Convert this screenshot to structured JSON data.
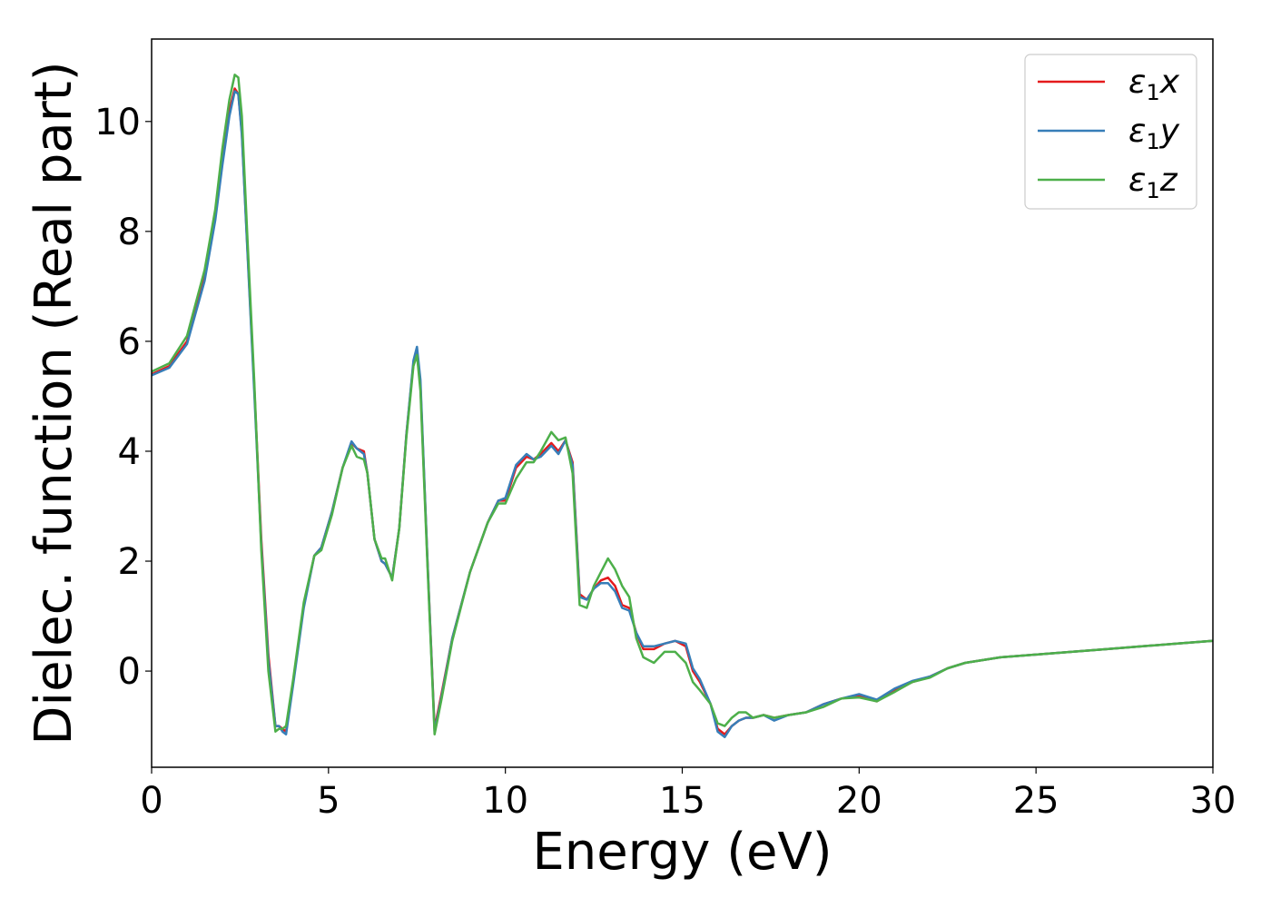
{
  "chart_data": {
    "type": "line",
    "title": "",
    "xlabel": "Energy (eV)",
    "ylabel": "Dielec. function (Real part)",
    "xlim": [
      0,
      30
    ],
    "ylim": [
      -1.75,
      11.5
    ],
    "xticks": [
      0,
      5,
      10,
      15,
      20,
      25,
      30
    ],
    "yticks": [
      0,
      2,
      4,
      6,
      8,
      10
    ],
    "grid": false,
    "legend_position": "top-right",
    "series": [
      {
        "name": "ε₁x",
        "legend_main": "ε",
        "legend_sub": "1",
        "legend_suffix": "x",
        "color": "#e41a1c",
        "x": [
          0,
          0.5,
          1.0,
          1.5,
          1.8,
          2.0,
          2.2,
          2.35,
          2.45,
          2.55,
          2.7,
          2.9,
          3.1,
          3.3,
          3.5,
          3.6,
          3.7,
          3.8,
          4.0,
          4.3,
          4.6,
          4.8,
          5.1,
          5.4,
          5.65,
          5.8,
          6.0,
          6.1,
          6.3,
          6.5,
          6.6,
          6.8,
          7.0,
          7.2,
          7.4,
          7.5,
          7.6,
          7.8,
          8.0,
          8.2,
          8.5,
          9.0,
          9.5,
          9.8,
          10.0,
          10.3,
          10.6,
          10.8,
          11.0,
          11.3,
          11.5,
          11.7,
          11.9,
          12.1,
          12.3,
          12.5,
          12.7,
          12.9,
          13.1,
          13.3,
          13.5,
          13.7,
          13.9,
          14.2,
          14.5,
          14.8,
          15.1,
          15.3,
          15.5,
          15.8,
          16.0,
          16.2,
          16.4,
          16.6,
          16.8,
          17.0,
          17.3,
          17.6,
          18.0,
          18.5,
          19.0,
          19.5,
          20.0,
          20.5,
          21.0,
          21.5,
          22.0,
          22.5,
          23.0,
          24.0,
          25.0,
          26.0,
          27.0,
          28.0,
          29.0,
          30.0
        ],
        "values": [
          5.4,
          5.55,
          6.0,
          7.2,
          8.3,
          9.3,
          10.2,
          10.6,
          10.5,
          9.8,
          7.8,
          5.2,
          2.4,
          0.3,
          -1.0,
          -1.0,
          -1.05,
          -1.1,
          -0.2,
          1.2,
          2.1,
          2.25,
          2.9,
          3.7,
          4.15,
          4.05,
          4.0,
          3.6,
          2.4,
          2.0,
          1.95,
          1.7,
          2.6,
          4.3,
          5.6,
          5.8,
          5.2,
          2.0,
          -1.05,
          -0.4,
          0.6,
          1.8,
          2.7,
          3.1,
          3.1,
          3.7,
          3.9,
          3.85,
          3.95,
          4.15,
          4.0,
          4.2,
          3.8,
          1.4,
          1.3,
          1.5,
          1.65,
          1.7,
          1.55,
          1.2,
          1.15,
          0.7,
          0.4,
          0.4,
          0.5,
          0.55,
          0.45,
          0.0,
          -0.2,
          -0.6,
          -1.05,
          -1.15,
          -1.0,
          -0.9,
          -0.85,
          -0.85,
          -0.8,
          -0.85,
          -0.8,
          -0.75,
          -0.6,
          -0.5,
          -0.45,
          -0.55,
          -0.35,
          -0.2,
          -0.1,
          0.05,
          0.15,
          0.25,
          0.3,
          0.35,
          0.4,
          0.45,
          0.5,
          0.55
        ]
      },
      {
        "name": "ε₁y",
        "legend_main": "ε",
        "legend_sub": "1",
        "legend_suffix": "y",
        "color": "#377eb8",
        "x": [
          0,
          0.5,
          1.0,
          1.5,
          1.8,
          2.0,
          2.2,
          2.35,
          2.45,
          2.55,
          2.7,
          2.9,
          3.1,
          3.3,
          3.5,
          3.6,
          3.7,
          3.8,
          4.0,
          4.3,
          4.6,
          4.8,
          5.1,
          5.4,
          5.65,
          5.8,
          6.0,
          6.1,
          6.3,
          6.5,
          6.6,
          6.8,
          7.0,
          7.2,
          7.4,
          7.5,
          7.6,
          7.8,
          8.0,
          8.2,
          8.5,
          9.0,
          9.5,
          9.8,
          10.0,
          10.3,
          10.6,
          10.8,
          11.0,
          11.3,
          11.5,
          11.7,
          11.9,
          12.1,
          12.3,
          12.5,
          12.7,
          12.9,
          13.1,
          13.3,
          13.5,
          13.7,
          13.9,
          14.2,
          14.5,
          14.8,
          15.1,
          15.3,
          15.5,
          15.8,
          16.0,
          16.2,
          16.4,
          16.6,
          16.8,
          17.0,
          17.3,
          17.6,
          18.0,
          18.5,
          19.0,
          19.5,
          20.0,
          20.5,
          21.0,
          21.5,
          22.0,
          22.5,
          23.0,
          24.0,
          25.0,
          26.0,
          27.0,
          28.0,
          29.0,
          30.0
        ],
        "values": [
          5.38,
          5.52,
          5.95,
          7.1,
          8.2,
          9.2,
          10.1,
          10.55,
          10.5,
          9.75,
          7.75,
          5.1,
          2.3,
          0.2,
          -1.0,
          -1.0,
          -1.1,
          -1.15,
          -0.25,
          1.15,
          2.1,
          2.25,
          2.9,
          3.7,
          4.18,
          4.05,
          3.95,
          3.6,
          2.4,
          2.0,
          1.95,
          1.7,
          2.6,
          4.3,
          5.65,
          5.9,
          5.3,
          2.0,
          -1.1,
          -0.45,
          0.6,
          1.8,
          2.7,
          3.1,
          3.15,
          3.75,
          3.95,
          3.85,
          3.9,
          4.1,
          3.95,
          4.2,
          3.75,
          1.35,
          1.3,
          1.5,
          1.6,
          1.6,
          1.45,
          1.15,
          1.1,
          0.7,
          0.45,
          0.45,
          0.5,
          0.55,
          0.5,
          0.05,
          -0.15,
          -0.6,
          -1.1,
          -1.2,
          -1.0,
          -0.9,
          -0.85,
          -0.85,
          -0.8,
          -0.9,
          -0.8,
          -0.75,
          -0.6,
          -0.5,
          -0.42,
          -0.52,
          -0.32,
          -0.18,
          -0.1,
          0.05,
          0.15,
          0.25,
          0.3,
          0.35,
          0.4,
          0.45,
          0.5,
          0.55
        ]
      },
      {
        "name": "ε₁z",
        "legend_main": "ε",
        "legend_sub": "1",
        "legend_suffix": "z",
        "color": "#4daf4a",
        "x": [
          0,
          0.5,
          1.0,
          1.5,
          1.8,
          2.0,
          2.2,
          2.35,
          2.45,
          2.55,
          2.7,
          2.9,
          3.1,
          3.3,
          3.5,
          3.6,
          3.7,
          3.8,
          4.0,
          4.3,
          4.6,
          4.8,
          5.1,
          5.4,
          5.65,
          5.8,
          6.0,
          6.1,
          6.3,
          6.5,
          6.6,
          6.8,
          7.0,
          7.2,
          7.4,
          7.5,
          7.6,
          7.8,
          8.0,
          8.2,
          8.5,
          9.0,
          9.5,
          9.8,
          10.0,
          10.3,
          10.6,
          10.8,
          11.0,
          11.3,
          11.5,
          11.7,
          11.9,
          12.1,
          12.3,
          12.5,
          12.7,
          12.9,
          13.1,
          13.3,
          13.5,
          13.7,
          13.9,
          14.2,
          14.5,
          14.8,
          15.1,
          15.3,
          15.5,
          15.8,
          16.0,
          16.2,
          16.4,
          16.6,
          16.8,
          17.0,
          17.3,
          17.6,
          18.0,
          18.5,
          19.0,
          19.5,
          20.0,
          20.5,
          21.0,
          21.5,
          22.0,
          22.5,
          23.0,
          24.0,
          25.0,
          26.0,
          27.0,
          28.0,
          29.0,
          30.0
        ],
        "values": [
          5.45,
          5.6,
          6.1,
          7.3,
          8.4,
          9.5,
          10.4,
          10.85,
          10.8,
          10.1,
          8.0,
          5.3,
          2.2,
          0.0,
          -1.1,
          -1.05,
          -1.05,
          -1.0,
          -0.15,
          1.25,
          2.1,
          2.2,
          2.85,
          3.7,
          4.1,
          3.9,
          3.85,
          3.6,
          2.4,
          2.05,
          2.05,
          1.65,
          2.6,
          4.25,
          5.55,
          5.75,
          5.1,
          1.9,
          -1.15,
          -0.5,
          0.55,
          1.8,
          2.7,
          3.05,
          3.05,
          3.5,
          3.8,
          3.8,
          4.0,
          4.35,
          4.2,
          4.25,
          3.6,
          1.2,
          1.15,
          1.55,
          1.8,
          2.05,
          1.85,
          1.55,
          1.35,
          0.6,
          0.25,
          0.15,
          0.35,
          0.35,
          0.15,
          -0.2,
          -0.35,
          -0.6,
          -0.95,
          -1.0,
          -0.85,
          -0.75,
          -0.75,
          -0.85,
          -0.8,
          -0.85,
          -0.8,
          -0.75,
          -0.65,
          -0.5,
          -0.48,
          -0.55,
          -0.38,
          -0.2,
          -0.12,
          0.05,
          0.15,
          0.25,
          0.3,
          0.35,
          0.4,
          0.45,
          0.5,
          0.55
        ]
      }
    ]
  }
}
